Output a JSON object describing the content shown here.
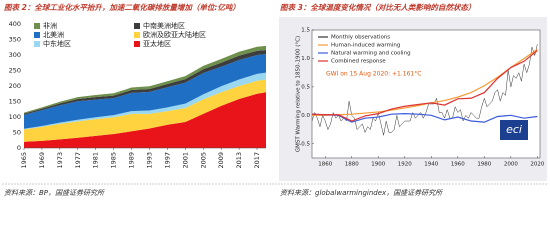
{
  "chart_data": [
    {
      "type": "area",
      "stacked": true,
      "title": "图表 2：全球工业化水平抬升，加速二氧化碳排放量增加（单位:亿吨）",
      "source": "资料来源：BP，国盛证券研究所",
      "x": [
        1965,
        1969,
        1973,
        1977,
        1981,
        1985,
        1989,
        1993,
        1997,
        2001,
        2005,
        2009,
        2013,
        2017,
        2019
      ],
      "xlim": [
        1965,
        2019
      ],
      "xticks": [
        1965,
        1969,
        1973,
        1977,
        1981,
        1985,
        1989,
        1993,
        1997,
        2001,
        2005,
        2009,
        2013,
        2017
      ],
      "ylim": [
        0,
        400
      ],
      "yticks": [
        0,
        50,
        100,
        150,
        200,
        250,
        300,
        350,
        400
      ],
      "grid": false,
      "series": [
        {
          "name": "非洲",
          "color": "#6f8f4c",
          "values": [
            3,
            4,
            5,
            6,
            7,
            7.5,
            8,
            8.5,
            9,
            10,
            11,
            12,
            12.5,
            13,
            13.5
          ]
        },
        {
          "name": "中南美洲地区",
          "color": "#3d3d3d",
          "values": [
            4,
            5,
            6,
            7,
            8,
            8,
            9,
            9.5,
            10.5,
            11,
            12,
            13,
            14,
            13.5,
            13
          ]
        },
        {
          "name": "北美洲",
          "color": "#1f6fc5",
          "values": [
            45,
            51,
            56,
            60,
            57,
            55,
            59,
            60,
            65,
            68,
            69,
            63,
            63,
            61,
            60
          ]
        },
        {
          "name": "欧洲及欧亚大陆地区",
          "color": "#ffd23f",
          "values": [
            40,
            45,
            50,
            53,
            54,
            54,
            56,
            47,
            44,
            45,
            47,
            44,
            42,
            42,
            41
          ]
        },
        {
          "name": "中东地区",
          "color": "#9ad7f0",
          "values": [
            2,
            3,
            4,
            5,
            6,
            7,
            9,
            11,
            12,
            14,
            16,
            19,
            21,
            22,
            22
          ]
        },
        {
          "name": "亚太地区",
          "color": "#e8141a",
          "values": [
            20,
            23,
            28,
            33,
            39,
            45,
            54,
            63,
            75,
            84,
            110,
            136,
            158,
            175,
            180
          ]
        }
      ]
    },
    {
      "type": "line",
      "title": "图表 3：全球温度变化情况（对比无人类影响的自然状态）",
      "source": "资料来源：globalwarmingindex，国盛证券研究所",
      "y_label": "GMST Warming relative to 1850-1900 (°C)",
      "annotation": "GWI on 15 Aug 2020: +1.161°C",
      "logo_text": "eci",
      "xlim": [
        1850,
        2022
      ],
      "xticks": [
        1860,
        1880,
        1900,
        1920,
        1940,
        1960,
        1980,
        2000,
        2020
      ],
      "ylim": [
        -0.75,
        1.5
      ],
      "yticks": [
        -0.5,
        {
          "value": 0,
          "label": "0.0"
        },
        0.5,
        {
          "value": 1,
          "label": "1.0"
        },
        1.5
      ],
      "series": [
        {
          "name": "Monthly observations",
          "color": "#333333",
          "x": [
            1850,
            1852,
            1854,
            1856,
            1858,
            1860,
            1862,
            1864,
            1866,
            1868,
            1870,
            1872,
            1874,
            1876,
            1878,
            1880,
            1882,
            1884,
            1886,
            1888,
            1890,
            1892,
            1894,
            1896,
            1898,
            1900,
            1902,
            1904,
            1906,
            1908,
            1910,
            1912,
            1914,
            1916,
            1918,
            1920,
            1922,
            1924,
            1926,
            1928,
            1930,
            1932,
            1934,
            1936,
            1938,
            1940,
            1942,
            1944,
            1946,
            1948,
            1950,
            1952,
            1954,
            1956,
            1958,
            1960,
            1962,
            1964,
            1966,
            1968,
            1970,
            1972,
            1974,
            1976,
            1978,
            1980,
            1982,
            1984,
            1986,
            1988,
            1990,
            1992,
            1994,
            1996,
            1998,
            2000,
            2002,
            2004,
            2006,
            2008,
            2010,
            2012,
            2014,
            2016,
            2018,
            2020
          ],
          "values": [
            -0.1,
            0.05,
            -0.05,
            -0.2,
            0.0,
            -0.1,
            -0.25,
            -0.15,
            0.05,
            -0.05,
            0.0,
            -0.1,
            -0.05,
            -0.1,
            0.25,
            0.0,
            -0.05,
            -0.25,
            -0.2,
            -0.15,
            -0.3,
            -0.2,
            -0.25,
            -0.05,
            -0.1,
            0.05,
            -0.15,
            -0.35,
            -0.1,
            -0.3,
            -0.3,
            -0.25,
            0.0,
            -0.2,
            -0.15,
            -0.1,
            -0.1,
            -0.1,
            0.05,
            -0.05,
            0.0,
            0.05,
            -0.05,
            0.05,
            0.2,
            0.2,
            0.2,
            0.3,
            0.05,
            0.05,
            -0.05,
            0.1,
            -0.05,
            -0.05,
            0.15,
            0.05,
            0.1,
            -0.1,
            0.0,
            -0.05,
            0.05,
            0.0,
            -0.05,
            -0.05,
            0.15,
            0.3,
            0.15,
            0.2,
            0.25,
            0.4,
            0.45,
            0.25,
            0.4,
            0.35,
            0.8,
            0.5,
            0.7,
            0.65,
            0.75,
            0.6,
            0.9,
            0.75,
            0.9,
            1.2,
            1.05,
            1.25
          ]
        },
        {
          "name": "Human-induced warming",
          "color": "#f39c34",
          "x": [
            1850,
            1860,
            1870,
            1880,
            1890,
            1900,
            1910,
            1920,
            1930,
            1940,
            1950,
            1960,
            1970,
            1980,
            1990,
            2000,
            2010,
            2020
          ],
          "values": [
            0,
            0,
            0.01,
            0.02,
            0.04,
            0.06,
            0.09,
            0.13,
            0.17,
            0.22,
            0.26,
            0.32,
            0.4,
            0.52,
            0.67,
            0.84,
            1.0,
            1.16
          ]
        },
        {
          "name": "Natural warming and cooling",
          "color": "#3b5bdb",
          "x": [
            1850,
            1860,
            1870,
            1880,
            1890,
            1900,
            1910,
            1920,
            1930,
            1940,
            1950,
            1960,
            1970,
            1980,
            1990,
            2000,
            2010,
            2020
          ],
          "values": [
            0.02,
            0.01,
            0.0,
            -0.12,
            -0.05,
            -0.03,
            0.02,
            0.03,
            0.02,
            0.0,
            -0.08,
            -0.03,
            -0.1,
            -0.12,
            -0.02,
            0.0,
            -0.05,
            -0.02
          ]
        },
        {
          "name": "Combined response",
          "color": "#e03131",
          "x": [
            1850,
            1860,
            1870,
            1880,
            1890,
            1900,
            1910,
            1920,
            1930,
            1940,
            1950,
            1960,
            1970,
            1980,
            1990,
            2000,
            2010,
            2020
          ],
          "values": [
            0.02,
            0.01,
            0.01,
            -0.1,
            -0.01,
            0.03,
            0.11,
            0.16,
            0.19,
            0.22,
            0.18,
            0.29,
            0.3,
            0.4,
            0.65,
            0.84,
            0.95,
            1.14
          ]
        }
      ]
    }
  ]
}
